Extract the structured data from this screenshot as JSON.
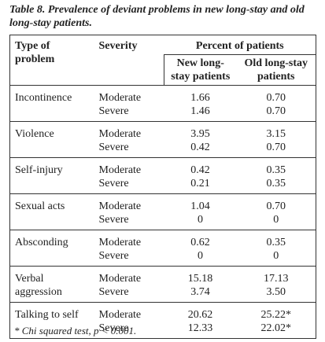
{
  "title": "Table 8. Prevalence of deviant problems in new long-stay and old long-stay patients.",
  "table": {
    "headers": {
      "problem": "Type of problem",
      "severity": "Severity",
      "percent": "Percent of patients",
      "new": "New long-stay patients",
      "old": "Old long-stay patients"
    },
    "rows": [
      {
        "problem": "Incontinence",
        "severity": [
          "Moderate",
          "Severe"
        ],
        "new": [
          "1.66",
          "1.46"
        ],
        "old": [
          "0.70",
          "0.70"
        ]
      },
      {
        "problem": "Violence",
        "severity": [
          "Moderate",
          "Severe"
        ],
        "new": [
          "3.95",
          "0.42"
        ],
        "old": [
          "3.15",
          "0.70"
        ]
      },
      {
        "problem": "Self-injury",
        "severity": [
          "Moderate",
          "Severe"
        ],
        "new": [
          "0.42",
          "0.21"
        ],
        "old": [
          "0.35",
          "0.35"
        ]
      },
      {
        "problem": "Sexual acts",
        "severity": [
          "Moderate",
          "Severe"
        ],
        "new": [
          "1.04",
          "0"
        ],
        "old": [
          "0.70",
          "0"
        ]
      },
      {
        "problem": "Absconding",
        "severity": [
          "Moderate",
          "Severe"
        ],
        "new": [
          "0.62",
          "0"
        ],
        "old": [
          "0.35",
          "0"
        ]
      },
      {
        "problem": "Verbal aggression",
        "severity": [
          "Moderate",
          "Severe"
        ],
        "new": [
          "15.18",
          "3.74"
        ],
        "old": [
          "17.13",
          "3.50"
        ]
      },
      {
        "problem": "Talking to self",
        "severity": [
          "Moderate",
          "Severe"
        ],
        "new": [
          "20.62",
          "12.33"
        ],
        "old": [
          "25.22*",
          "22.02*"
        ]
      }
    ]
  },
  "footnote": "* Chi squared test, p < 0.001."
}
